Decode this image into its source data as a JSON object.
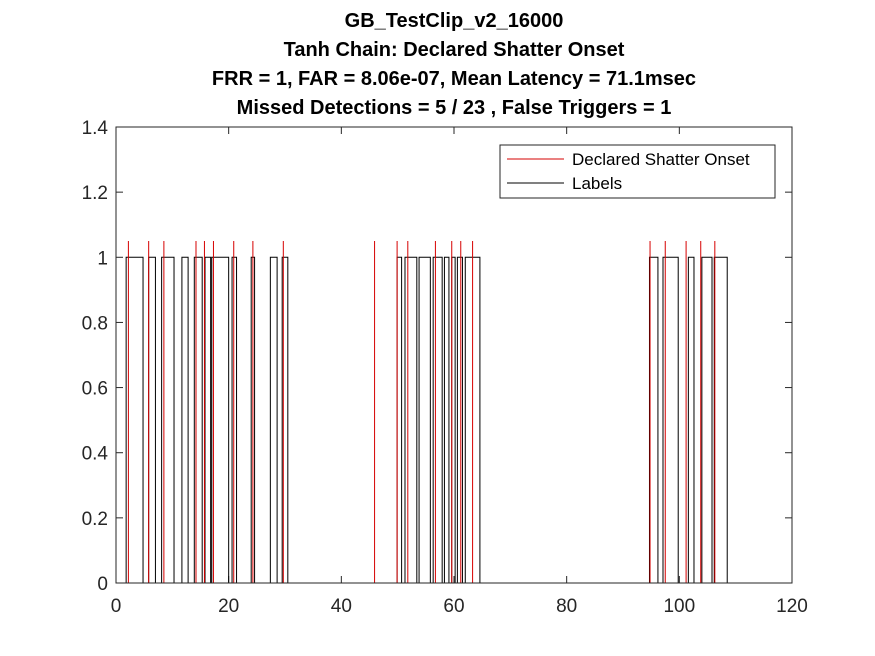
{
  "chart_data": {
    "type": "line",
    "title_lines": [
      "GB_TestClip_v2_16000",
      "Tanh Chain: Declared Shatter Onset",
      "FRR = 1,  FAR = 8.06e-07,  Mean Latency = 71.1msec",
      "Missed Detections = 5 / 23 , False Triggers = 1"
    ],
    "xlabel": "",
    "ylabel": "",
    "xlim": [
      0,
      120
    ],
    "ylim": [
      0,
      1.4
    ],
    "xticks": [
      0,
      20,
      40,
      60,
      80,
      100,
      120
    ],
    "yticks": [
      0,
      0.2,
      0.4,
      0.6,
      0.8,
      1,
      1.2,
      1.4
    ],
    "xtick_labels": [
      "0",
      "20",
      "40",
      "60",
      "80",
      "100",
      "120"
    ],
    "ytick_labels": [
      "0",
      "0.2",
      "0.4",
      "0.6",
      "0.8",
      "1",
      "1.2",
      "1.4"
    ],
    "grid": false,
    "legend_position": "top-right",
    "series": [
      {
        "name": "Declared Shatter Onset",
        "color": "#d60000",
        "kind": "impulse",
        "height": 1.05,
        "x": [
          2.2,
          5.8,
          8.5,
          14.2,
          15.7,
          17.3,
          20.9,
          24.3,
          29.7,
          45.9,
          49.9,
          51.8,
          56.7,
          59.6,
          61.2,
          63.3,
          94.8,
          97.5,
          101.2,
          103.8,
          106.3
        ]
      },
      {
        "name": "Labels",
        "color": "#000000",
        "kind": "pulses",
        "level": 1,
        "pulses": [
          [
            1.8,
            4.8
          ],
          [
            5.8,
            7.0
          ],
          [
            8.1,
            10.3
          ],
          [
            11.7,
            12.8
          ],
          [
            13.9,
            15.3
          ],
          [
            15.8,
            16.8
          ],
          [
            17.0,
            20.0
          ],
          [
            20.6,
            21.4
          ],
          [
            24.0,
            24.6
          ],
          [
            27.4,
            28.6
          ],
          [
            29.5,
            30.5
          ],
          [
            49.9,
            50.7
          ],
          [
            51.3,
            53.4
          ],
          [
            53.8,
            55.8
          ],
          [
            56.3,
            57.9
          ],
          [
            58.3,
            59.1
          ],
          [
            59.6,
            60.2
          ],
          [
            60.6,
            61.5
          ],
          [
            62.0,
            64.6
          ],
          [
            94.7,
            96.2
          ],
          [
            97.1,
            99.8
          ],
          [
            101.6,
            102.6
          ],
          [
            104.0,
            105.8
          ],
          [
            106.2,
            108.5
          ]
        ],
        "x_end": 108.9
      }
    ]
  }
}
